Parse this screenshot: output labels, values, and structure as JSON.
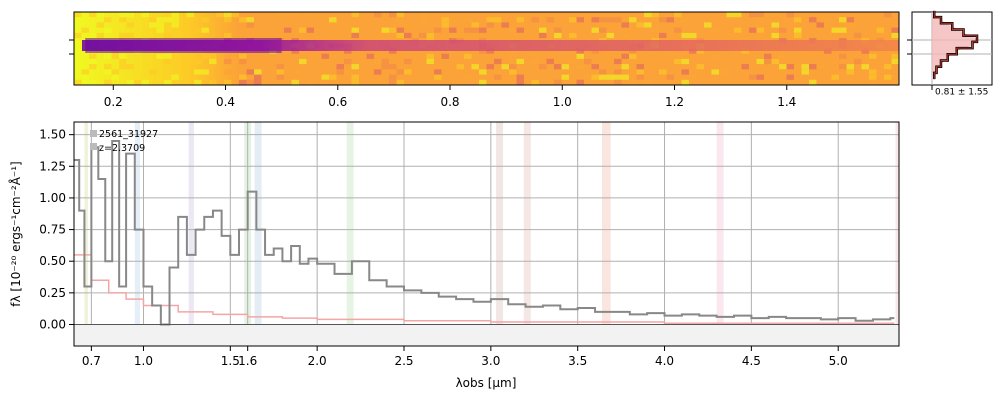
{
  "chart_data": [
    {
      "type": "heatmap",
      "panel": "2d-spectrum",
      "x_ticks": [
        "0.2",
        "0.4",
        "0.6",
        "0.8",
        "1.0",
        "1.2",
        "1.4"
      ],
      "x_tick_values": [
        0.2,
        0.4,
        0.6,
        0.8,
        1.0,
        1.2,
        1.4
      ],
      "xlim": [
        0.13,
        1.6
      ],
      "colormap": "plasma",
      "trace_row_fraction": 0.5,
      "dark_region_x": [
        0.15,
        0.5
      ],
      "bright_region_x": [
        0.13,
        0.32
      ]
    },
    {
      "type": "line",
      "panel": "spatial-profile",
      "label": "0.81 ± 1.55",
      "profile": [
        0.05,
        0.2,
        0.45,
        0.7,
        1.0,
        0.9,
        0.55,
        0.35,
        0.2,
        0.1,
        0.05
      ],
      "line_color": "#000000",
      "fill_color": "#f4b6b6",
      "model_color": "#c0392b"
    },
    {
      "type": "line",
      "panel": "1d-spectrum",
      "annotations": [
        "2561_31927",
        "z=2.3709"
      ],
      "xlabel": "λobs [µm]",
      "ylabel": "fλ [10⁻²⁰ ergs⁻¹cm⁻²Å⁻¹]",
      "x_ticks": [
        "0.7",
        "1.0",
        "1.5",
        "1.6",
        "2.0",
        "2.5",
        "3.0",
        "3.5",
        "4.0",
        "4.5",
        "5.0"
      ],
      "x_tick_values": [
        0.7,
        1.0,
        1.5,
        1.6,
        2.0,
        2.5,
        3.0,
        3.5,
        4.0,
        4.5,
        5.0
      ],
      "y_ticks": [
        "0.00",
        "0.25",
        "0.50",
        "0.75",
        "1.00",
        "1.25",
        "1.50"
      ],
      "xlim": [
        0.6,
        5.35
      ],
      "ylim": [
        -0.17,
        1.6
      ],
      "grid": true,
      "series": [
        {
          "role": "flux",
          "color": "#888888",
          "x": [
            0.6,
            0.63,
            0.66,
            0.7,
            0.74,
            0.78,
            0.82,
            0.86,
            0.9,
            0.95,
            1.0,
            1.05,
            1.1,
            1.15,
            1.2,
            1.25,
            1.3,
            1.35,
            1.4,
            1.45,
            1.5,
            1.55,
            1.6,
            1.65,
            1.7,
            1.75,
            1.8,
            1.85,
            1.9,
            1.95,
            2.0,
            2.1,
            2.2,
            2.3,
            2.4,
            2.5,
            2.6,
            2.7,
            2.8,
            2.9,
            3.0,
            3.1,
            3.2,
            3.3,
            3.4,
            3.5,
            3.6,
            3.7,
            3.8,
            3.9,
            4.0,
            4.1,
            4.2,
            4.3,
            4.4,
            4.5,
            4.6,
            4.7,
            4.8,
            4.9,
            5.0,
            5.1,
            5.2,
            5.3
          ],
          "y": [
            1.3,
            0.9,
            0.3,
            1.4,
            1.15,
            0.5,
            1.45,
            0.3,
            1.35,
            0.75,
            0.3,
            0.15,
            0.0,
            0.45,
            0.85,
            0.55,
            0.75,
            0.85,
            0.9,
            0.7,
            0.55,
            0.75,
            1.05,
            0.75,
            0.55,
            0.6,
            0.5,
            0.62,
            0.48,
            0.52,
            0.48,
            0.4,
            0.5,
            0.35,
            0.3,
            0.27,
            0.25,
            0.22,
            0.2,
            0.18,
            0.2,
            0.16,
            0.14,
            0.15,
            0.12,
            0.13,
            0.1,
            0.1,
            0.08,
            0.09,
            0.07,
            0.08,
            0.07,
            0.06,
            0.07,
            0.05,
            0.06,
            0.05,
            0.05,
            0.04,
            0.05,
            0.03,
            0.04,
            0.05
          ]
        },
        {
          "role": "model",
          "color": "#f4a6a6",
          "x": [
            0.6,
            0.7,
            0.8,
            0.9,
            1.0,
            1.2,
            1.4,
            1.6,
            1.8,
            2.0,
            2.5,
            3.0,
            3.5,
            4.0,
            4.5,
            5.0,
            5.3
          ],
          "y": [
            0.55,
            0.35,
            0.25,
            0.2,
            0.15,
            0.1,
            0.08,
            0.06,
            0.05,
            0.04,
            0.03,
            0.02,
            0.02,
            0.01,
            0.01,
            0.01,
            0.01
          ]
        }
      ],
      "shaded_bands": [
        {
          "x": [
            0.66,
            0.68
          ],
          "color": "#e8ecc8"
        },
        {
          "x": [
            0.95,
            0.98
          ],
          "color": "#dbe8f5"
        },
        {
          "x": [
            1.26,
            1.29
          ],
          "color": "#e3ddf0"
        },
        {
          "x": [
            1.58,
            1.62
          ],
          "color": "#d8ecd8"
        },
        {
          "x": [
            1.64,
            1.68
          ],
          "color": "#d8e6ef"
        },
        {
          "x": [
            2.17,
            2.21
          ],
          "color": "#dcefd8"
        },
        {
          "x": [
            3.03,
            3.07
          ],
          "color": "#eddcd8"
        },
        {
          "x": [
            3.19,
            3.23
          ],
          "color": "#efddd8"
        },
        {
          "x": [
            3.64,
            3.69
          ],
          "color": "#f8dcd0"
        },
        {
          "x": [
            4.3,
            4.34
          ],
          "color": "#f8dde8"
        },
        {
          "x": [
            5.33,
            5.35
          ],
          "color": "#f8dde0"
        }
      ]
    }
  ]
}
